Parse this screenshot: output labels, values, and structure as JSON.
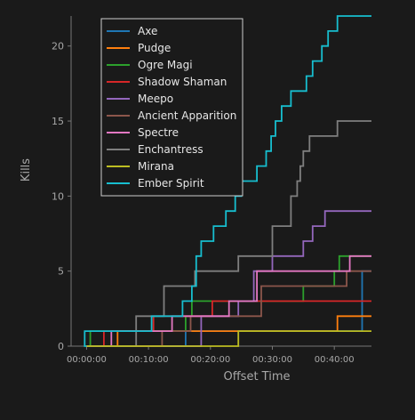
{
  "chart_data": {
    "type": "line",
    "step": true,
    "xlabel": "Offset Time",
    "ylabel": "Kills",
    "xlim": [
      -2.5,
      46
    ],
    "ylim": [
      0,
      22
    ],
    "x_unit": "minutes",
    "x_tick_values": [
      0,
      10,
      20,
      30,
      40
    ],
    "x_tick_labels": [
      "00:00:00",
      "00:10:00",
      "00:20:00",
      "00:30:00",
      "00:40:00"
    ],
    "y_ticks": [
      0,
      5,
      10,
      15,
      20
    ],
    "grid": false,
    "legend_position": "top-left",
    "background": "#1a1a1a",
    "series": [
      {
        "name": "Axe",
        "color": "#1f77b4",
        "x": [
          0,
          16,
          44.5
        ],
        "y": [
          0,
          1,
          5
        ]
      },
      {
        "name": "Pudge",
        "color": "#ff7f0e",
        "x": [
          0,
          5,
          40.5
        ],
        "y": [
          0,
          1,
          2
        ]
      },
      {
        "name": "Ogre Magi",
        "color": "#2ca02c",
        "x": [
          0,
          0.6,
          16,
          17,
          35,
          40,
          40.8,
          42
        ],
        "y": [
          0,
          1,
          2,
          3,
          4,
          5,
          6,
          6
        ]
      },
      {
        "name": "Shadow Shaman",
        "color": "#d62728",
        "x": [
          0,
          2.8,
          10.8,
          20.3,
          35,
          44
        ],
        "y": [
          0,
          1,
          2,
          3,
          3,
          3
        ]
      },
      {
        "name": "Meepo",
        "color": "#9467bd",
        "x": [
          0,
          18.5,
          24.5,
          27,
          30,
          35,
          36.5,
          38.5
        ],
        "y": [
          0,
          2,
          3,
          5,
          6,
          7,
          8,
          9
        ]
      },
      {
        "name": "Ancient Apparition",
        "color": "#8c564b",
        "x": [
          0,
          12.2,
          16.8,
          28.2,
          35,
          42
        ],
        "y": [
          0,
          1,
          2,
          4,
          4,
          5
        ]
      },
      {
        "name": "Spectre",
        "color": "#e377c2",
        "x": [
          0,
          4,
          13.8,
          23,
          27.5,
          42.5
        ],
        "y": [
          0,
          1,
          2,
          3,
          5,
          6
        ]
      },
      {
        "name": "Enchantress",
        "color": "#7f7f7f",
        "x": [
          0,
          8,
          12.5,
          17.5,
          24.5,
          30,
          33,
          34,
          34.5,
          35,
          36,
          40.5
        ],
        "y": [
          0,
          2,
          4,
          5,
          6,
          8,
          10,
          11,
          12,
          13,
          14,
          15
        ]
      },
      {
        "name": "Mirana",
        "color": "#bcbd22",
        "x": [
          0,
          24.5
        ],
        "y": [
          0,
          1
        ]
      },
      {
        "name": "Ember Spirit",
        "color": "#17becf",
        "x": [
          0,
          -0.3,
          10.5,
          15.5,
          17,
          17.7,
          18.5,
          20.5,
          22.5,
          24,
          25,
          27.5,
          29,
          29.8,
          30.5,
          31.5,
          33,
          35.5,
          36.5,
          38,
          39,
          40.5,
          42.5,
          43,
          43.5
        ],
        "y": [
          0,
          1,
          2,
          3,
          4,
          6,
          7,
          8,
          9,
          10,
          11,
          12,
          13,
          14,
          15,
          16,
          17,
          18,
          19,
          20,
          21,
          22,
          22,
          22,
          22
        ]
      }
    ]
  }
}
